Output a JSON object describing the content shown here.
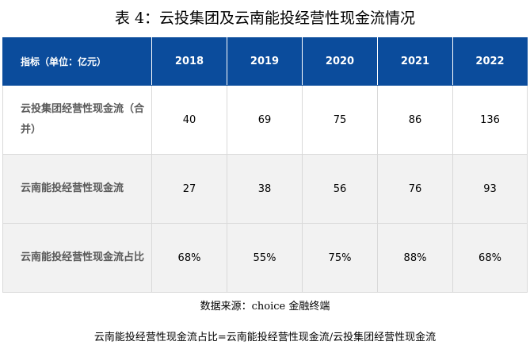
{
  "title": "表 4：云投集团及云南能投经营性现金流情况",
  "table": {
    "header_metric": "指标（单位：亿元）",
    "years": [
      "2018",
      "2019",
      "2020",
      "2021",
      "2022"
    ],
    "rows": [
      {
        "label": "云投集团经营性现金流（合并）",
        "values": [
          "40",
          "69",
          "75",
          "86",
          "136"
        ]
      },
      {
        "label": "云南能投经营性现金流",
        "values": [
          "27",
          "38",
          "56",
          "76",
          "93"
        ]
      },
      {
        "label": "云南能投经营性现金流占比",
        "values": [
          "68%",
          "55%",
          "75%",
          "88%",
          "68%"
        ]
      }
    ]
  },
  "source": "数据来源：choice 金融终端",
  "note": "云南能投经营性现金流占比=云南能投经营性现金流/云投集团经营性现金流"
}
